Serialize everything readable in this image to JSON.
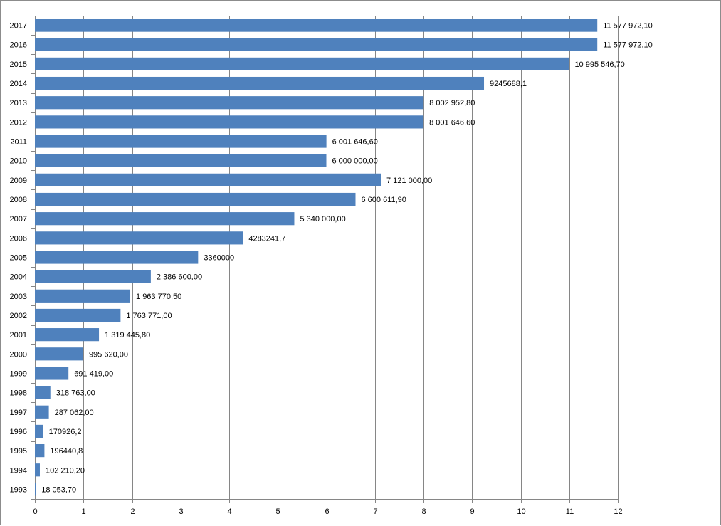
{
  "chart_data": {
    "type": "bar",
    "orientation": "horizontal",
    "categories": [
      "2017",
      "2016",
      "2015",
      "2014",
      "2013",
      "2012",
      "2011",
      "2010",
      "2009",
      "2008",
      "2007",
      "2006",
      "2005",
      "2004",
      "2003",
      "2002",
      "2001",
      "2000",
      "1999",
      "1998",
      "1997",
      "1996",
      "1995",
      "1994",
      "1993"
    ],
    "values": [
      11.5779721,
      11.5779721,
      10.9955467,
      9.2456881,
      8.0029528,
      8.0016466,
      6.0016466,
      6.0,
      7.121,
      6.6006119,
      5.34,
      4.2832417,
      3.36,
      2.3866,
      1.9637705,
      1.763771,
      1.3194458,
      0.99562,
      0.691419,
      0.318763,
      0.287062,
      0.1709262,
      0.1964408,
      0.1022102,
      0.0180537
    ],
    "data_labels": [
      "11 577 972,10",
      "11 577 972,10",
      "10 995 546,70",
      "9245688,1",
      "8 002 952,80",
      "8 001 646,60",
      "6 001 646,60",
      "6 000 000,00",
      "7 121 000,00",
      "6 600 611,90",
      "5 340 000,00",
      "4283241,7",
      "3360000",
      "2 386 600,00",
      "1 963 770,50",
      "1 763 771,00",
      "1 319 445,80",
      "995 620,00",
      "691 419,00",
      "318 763,00",
      "287 062,00",
      "170926,2",
      "196440,8",
      "102 210,20",
      "18 053,70"
    ],
    "x_ticks": [
      "0",
      "1",
      "2",
      "3",
      "4",
      "5",
      "6",
      "7",
      "8",
      "9",
      "10",
      "11",
      "12"
    ],
    "xlim": [
      0,
      12
    ],
    "grid": "vertical",
    "legend": "none",
    "title": "",
    "xlabel": "",
    "ylabel": "",
    "bar_color": "#4f81bd",
    "grid_color": "#868686"
  }
}
